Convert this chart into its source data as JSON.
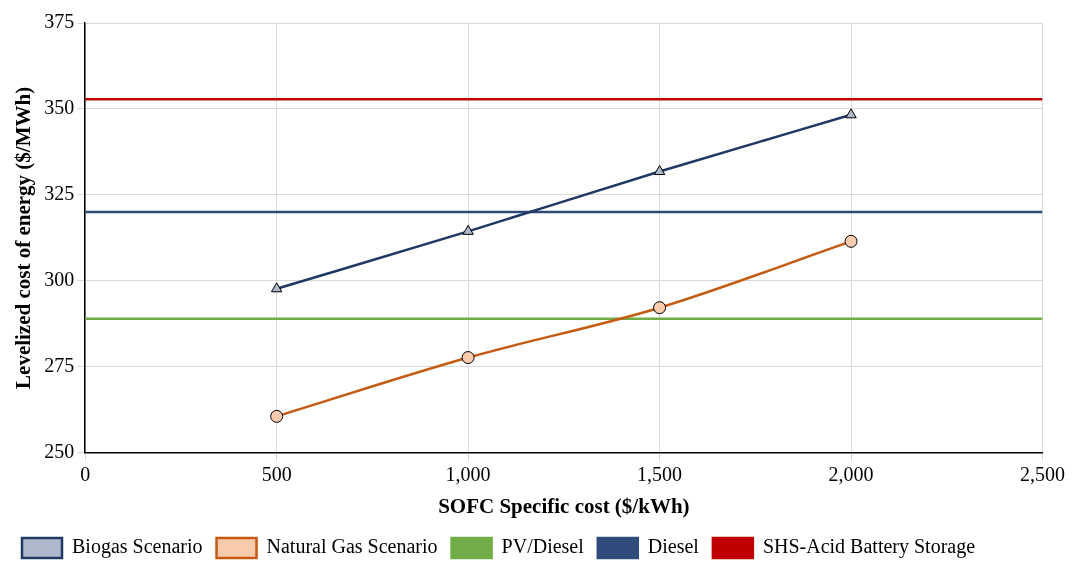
{
  "chart_data": {
    "type": "line",
    "xlabel": "SOFC Specific cost ($/kWh)",
    "ylabel": "Levelized cost of energy ($/MWh)",
    "xlim": [
      0,
      2500
    ],
    "xticks": [
      0,
      500,
      {
        "value": 1000,
        "label": "1,000"
      },
      {
        "value": 1500,
        "label": "1,500"
      },
      {
        "value": 2000,
        "label": "2,000"
      },
      {
        "value": 2500,
        "label": "2,500"
      }
    ],
    "ylim": [
      250,
      375
    ],
    "yticks": [
      250,
      275,
      300,
      325,
      350,
      375
    ],
    "grid": true,
    "legend": "bottom",
    "line_style": "solid",
    "series": [
      {
        "name": "Biogas Scenario",
        "color": "#1f3864",
        "marker": "triangle",
        "x": [
          500,
          1000,
          1500,
          2000
        ],
        "values": [
          297.7,
          314.4,
          331.8,
          348.3
        ]
      },
      {
        "name": "Natural Gas Scenario",
        "color": "#c55a11",
        "marker": "circle",
        "x": [
          500,
          1000,
          1500,
          2000
        ],
        "values": [
          260.6,
          277.7,
          292.2,
          311.5
        ]
      },
      {
        "name": "PV/Diesel",
        "color": "#70ad47",
        "marker": "none",
        "x": [
          0,
          2500
        ],
        "values": [
          289,
          289
        ]
      },
      {
        "name": "Diesel",
        "color": "#2f4b7c",
        "marker": "none",
        "x": [
          0,
          2500
        ],
        "values": [
          320,
          320
        ]
      },
      {
        "name": "SHS-Acid Battery Storage",
        "color": "#c00000",
        "marker": "none",
        "x": [
          0,
          2500
        ],
        "values": [
          352.8,
          352.8
        ]
      }
    ]
  }
}
